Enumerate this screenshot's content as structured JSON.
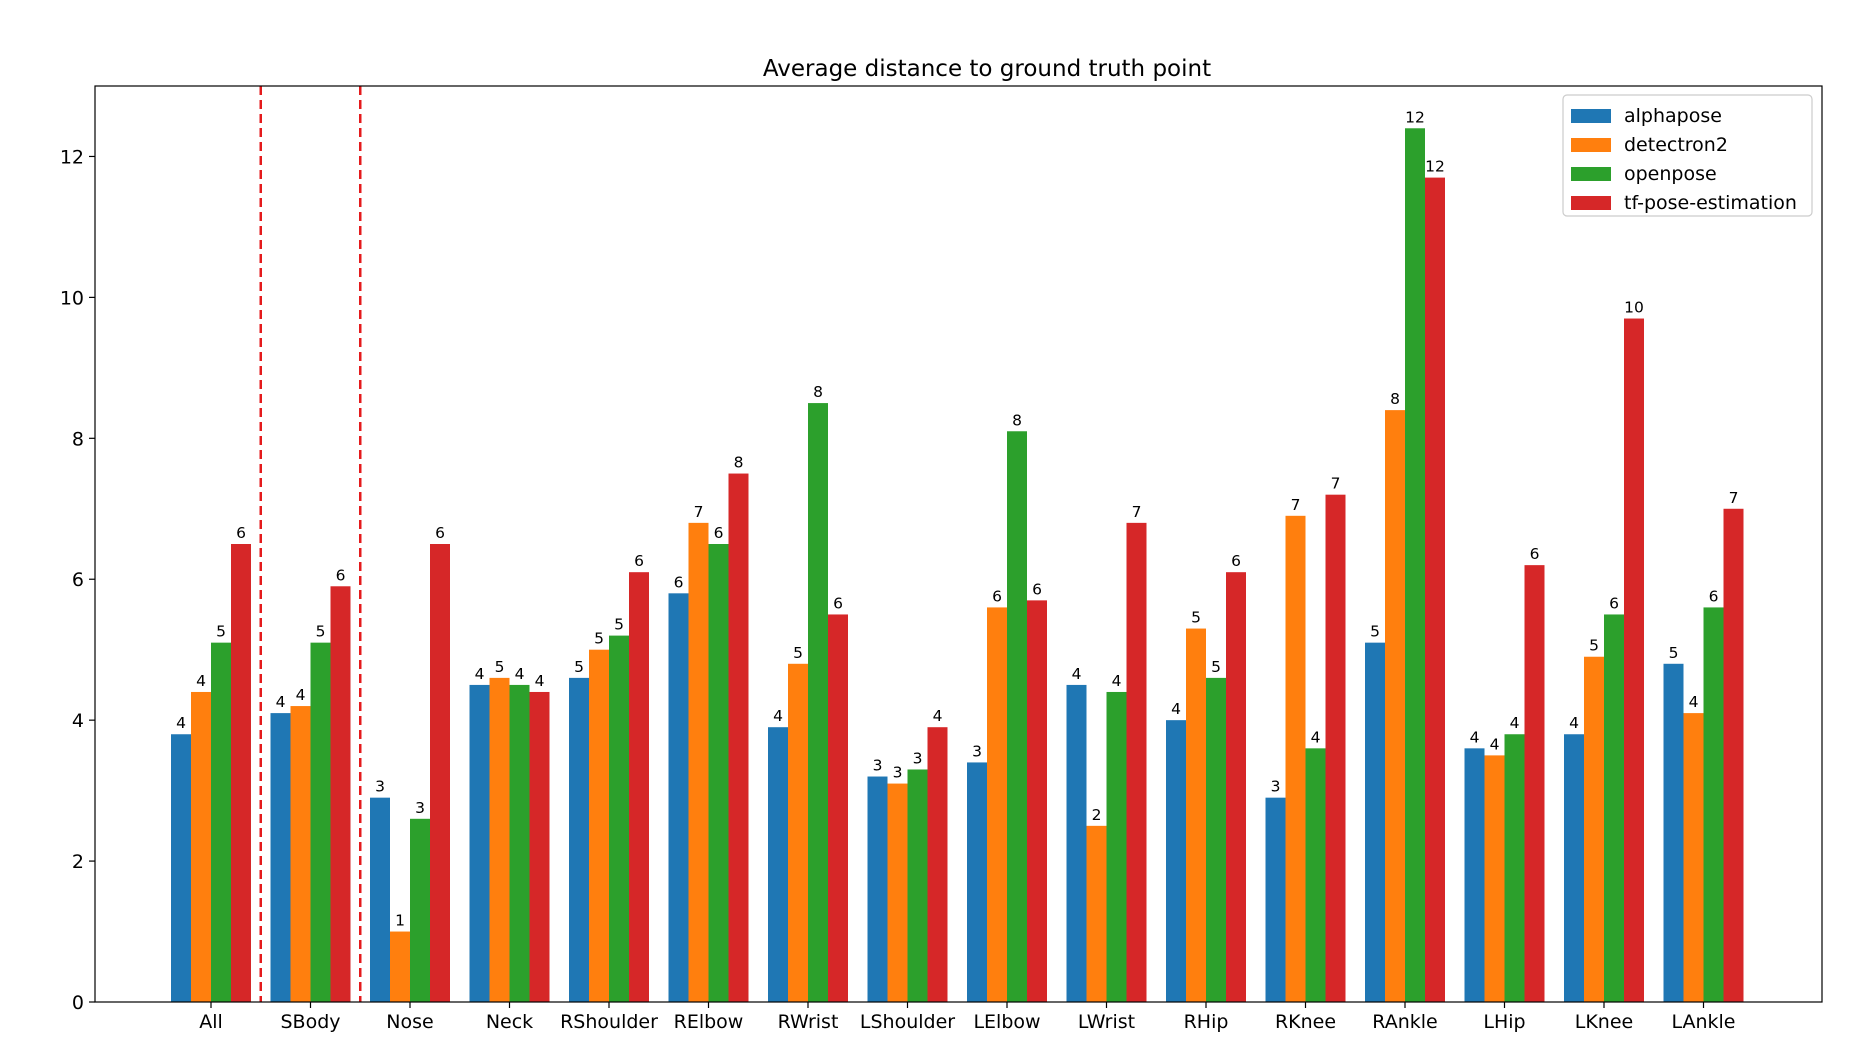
{
  "chart_data": {
    "type": "bar",
    "title": "Average distance to ground truth point",
    "xlabel": "",
    "ylabel": "",
    "ylim": [
      0,
      13
    ],
    "yticks": [
      "0",
      "2",
      "4",
      "6",
      "8",
      "10",
      "12"
    ],
    "categories": [
      "All",
      "SBody",
      "Nose",
      "Neck",
      "RShoulder",
      "RElbow",
      "RWrist",
      "LShoulder",
      "LElbow",
      "LWrist",
      "RHip",
      "RKnee",
      "RAnkle",
      "LHip",
      "LKnee",
      "LAnkle"
    ],
    "series": [
      {
        "name": "alphapose",
        "color": "#1f77b4",
        "values": [
          3.8,
          4.1,
          2.9,
          4.5,
          4.6,
          5.8,
          3.9,
          3.2,
          3.4,
          4.5,
          4.0,
          2.9,
          5.1,
          3.6,
          3.8,
          4.8
        ],
        "labels": [
          "4",
          "4",
          "3",
          "4",
          "5",
          "6",
          "4",
          "3",
          "3",
          "4",
          "4",
          "3",
          "5",
          "4",
          "4",
          "5"
        ]
      },
      {
        "name": "detectron2",
        "color": "#ff7f0e",
        "values": [
          4.4,
          4.2,
          1.0,
          4.6,
          5.0,
          6.8,
          4.8,
          3.1,
          5.6,
          2.5,
          5.3,
          6.9,
          8.4,
          3.5,
          4.9,
          4.1
        ],
        "labels": [
          "4",
          "4",
          "1",
          "5",
          "5",
          "7",
          "5",
          "3",
          "6",
          "2",
          "5",
          "7",
          "8",
          "4",
          "5",
          "4"
        ]
      },
      {
        "name": "openpose",
        "color": "#2ca02c",
        "values": [
          5.1,
          5.1,
          2.6,
          4.5,
          5.2,
          6.5,
          8.5,
          3.3,
          8.1,
          4.4,
          4.6,
          3.6,
          12.4,
          3.8,
          5.5,
          5.6
        ],
        "labels": [
          "5",
          "5",
          "3",
          "4",
          "5",
          "6",
          "8",
          "3",
          "8",
          "4",
          "5",
          "4",
          "12",
          "4",
          "6",
          "6"
        ]
      },
      {
        "name": "tf-pose-estimation",
        "color": "#d62728",
        "values": [
          6.5,
          5.9,
          6.5,
          4.4,
          6.1,
          7.5,
          5.5,
          3.9,
          5.7,
          6.8,
          6.1,
          7.2,
          11.7,
          6.2,
          9.7,
          7.0
        ],
        "labels": [
          "6",
          "6",
          "6",
          "4",
          "6",
          "8",
          "6",
          "4",
          "6",
          "7",
          "6",
          "7",
          "12",
          "6",
          "10",
          "7"
        ]
      }
    ],
    "separators_after_categories": [
      "All",
      "SBody"
    ],
    "separator_color": "#e41a1c",
    "legend_position": "top-right",
    "grid": false
  }
}
